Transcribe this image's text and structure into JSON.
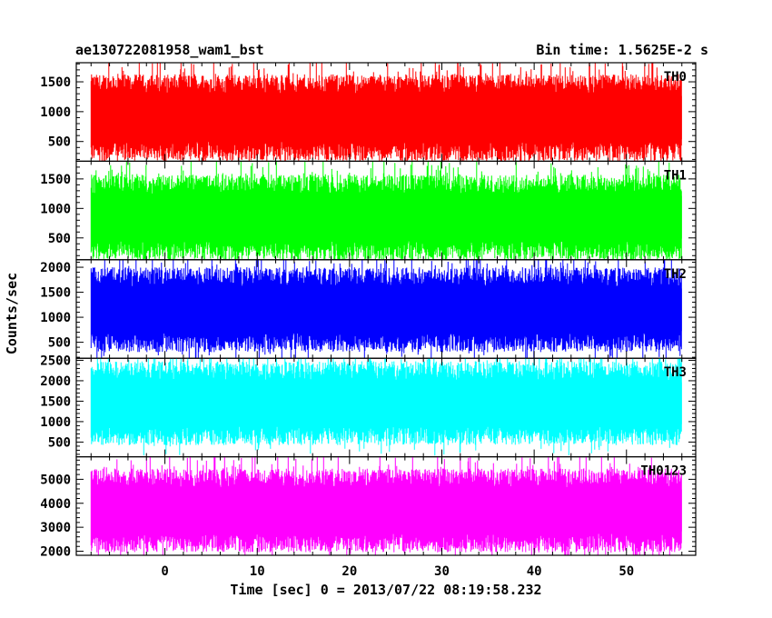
{
  "chart_data": {
    "type": "line",
    "title_left": "ae130722081958_wam1_bst",
    "title_right": "Bin time: 1.5625E-2 s",
    "xlabel": "Time [sec] 0 = 2013/07/22 08:19:58.232",
    "ylabel": "Counts/sec",
    "xlim": [
      -9.6,
      57.5
    ],
    "x_data_range": [
      -8.0,
      56.0
    ],
    "x_ticks": [
      "0",
      "10",
      "20",
      "30",
      "40",
      "50"
    ],
    "x_tick_values": [
      0,
      10,
      20,
      30,
      40,
      50
    ],
    "grid": false,
    "legend": "none",
    "panels": [
      {
        "name": "TH0",
        "color": "#ff0000",
        "ylim": [
          170,
          1820
        ],
        "y_ticks": [
          "500",
          "1000",
          "1500"
        ],
        "y_tick_values": [
          500,
          1000,
          1500
        ],
        "mean": 900,
        "typical_low": 250,
        "typical_high": 1700
      },
      {
        "name": "TH1",
        "color": "#00ff00",
        "ylim": [
          130,
          1800
        ],
        "y_ticks": [
          "500",
          "1000",
          "1500"
        ],
        "y_tick_values": [
          500,
          1000,
          1500
        ],
        "mean": 850,
        "typical_low": 200,
        "typical_high": 1650
      },
      {
        "name": "TH2",
        "color": "#0000ff",
        "ylim": [
          180,
          2150
        ],
        "y_ticks": [
          "500",
          "1000",
          "1500",
          "2000"
        ],
        "y_tick_values": [
          500,
          1000,
          1500,
          2000
        ],
        "mean": 1150,
        "typical_low": 350,
        "typical_high": 2050
      },
      {
        "name": "TH3",
        "color": "#00ffff",
        "ylim": [
          140,
          2550
        ],
        "y_ticks": [
          "500",
          "1000",
          "1500",
          "2000",
          "2500"
        ],
        "y_tick_values": [
          500,
          1000,
          1500,
          2000,
          2500
        ],
        "mean": 1450,
        "typical_low": 400,
        "typical_high": 2450
      },
      {
        "name": "TH0123",
        "color": "#ff00ff",
        "ylim": [
          1830,
          5940
        ],
        "y_ticks": [
          "2000",
          "3000",
          "4000",
          "5000"
        ],
        "y_tick_values": [
          2000,
          3000,
          4000,
          5000
        ],
        "mean": 3700,
        "typical_low": 2200,
        "typical_high": 5700
      }
    ]
  }
}
